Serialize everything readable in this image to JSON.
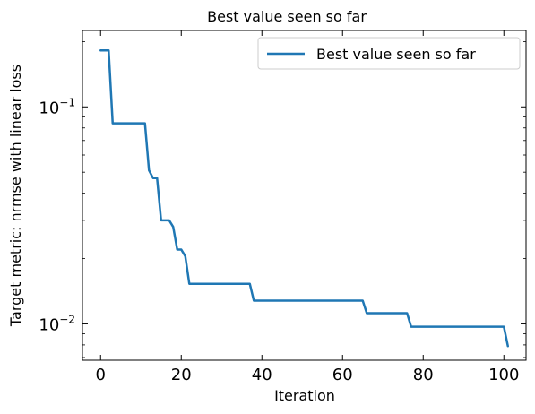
{
  "chart_data": {
    "type": "line",
    "title": "Best value seen so far",
    "xlabel": "Iteration",
    "ylabel": "Target metric: nrmse with linear loss",
    "yscale": "log",
    "xlim": [
      -4.5,
      105.5
    ],
    "ylim": [
      0.0068,
      0.225
    ],
    "xticks": [
      0,
      20,
      40,
      60,
      80,
      100
    ],
    "xtick_labels": [
      "0",
      "20",
      "40",
      "60",
      "80",
      "100"
    ],
    "yticks": [
      0.01,
      0.1
    ],
    "ytick_labels": [
      {
        "base": "10",
        "exp": "−2"
      },
      {
        "base": "10",
        "exp": "−1"
      }
    ],
    "grid": false,
    "legend_position": "upper right",
    "series": [
      {
        "name": "Best value seen so far",
        "color": "#1f77b4",
        "x": [
          0,
          2,
          3,
          11,
          12,
          13,
          14,
          15,
          16,
          17,
          18,
          19,
          20,
          21,
          22,
          37,
          38,
          65,
          66,
          76,
          77,
          100,
          101
        ],
        "y": [
          0.182,
          0.182,
          0.084,
          0.084,
          0.051,
          0.047,
          0.047,
          0.03,
          0.03,
          0.03,
          0.028,
          0.022,
          0.022,
          0.0205,
          0.0153,
          0.0153,
          0.0128,
          0.0128,
          0.0112,
          0.0112,
          0.0097,
          0.0097,
          0.0079
        ]
      }
    ]
  }
}
